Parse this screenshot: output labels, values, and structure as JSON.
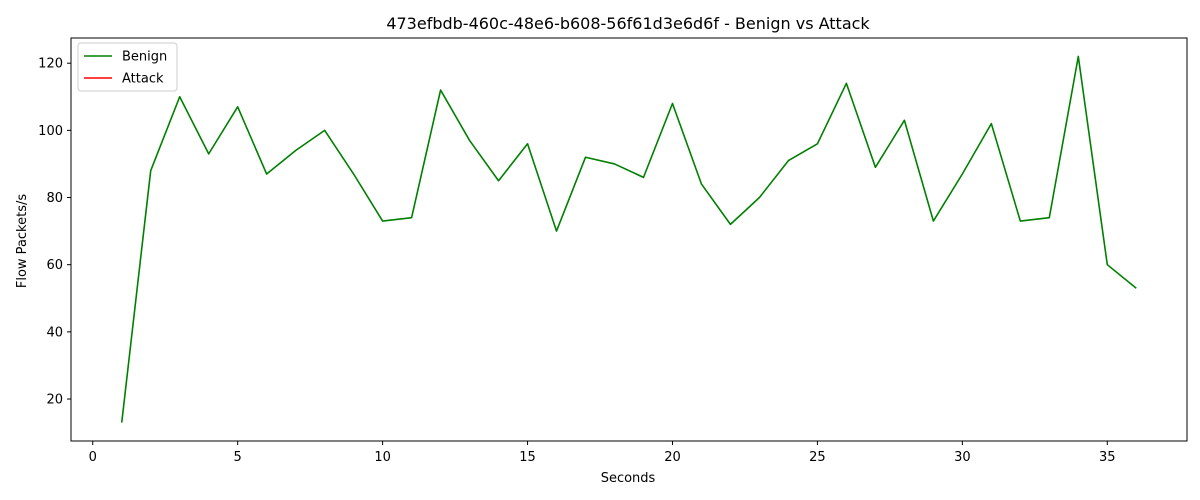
{
  "chart_data": {
    "type": "line",
    "title": "473efbdb-460c-48e6-b608-56f61d3e6d6f - Benign vs Attack",
    "xlabel": "Seconds",
    "ylabel": "Flow Packets/s",
    "xlim": [
      -0.75,
      37.75
    ],
    "ylim": [
      7.5,
      127.5
    ],
    "xticks": [
      0,
      5,
      10,
      15,
      20,
      25,
      30,
      35
    ],
    "yticks": [
      20,
      40,
      60,
      80,
      100,
      120
    ],
    "grid": false,
    "legend_position": "top-left",
    "series": [
      {
        "name": "Benign",
        "color": "#008000",
        "x": [
          1,
          2,
          3,
          4,
          5,
          6,
          7,
          8,
          9,
          10,
          11,
          12,
          13,
          14,
          15,
          16,
          17,
          18,
          19,
          20,
          21,
          22,
          23,
          24,
          25,
          26,
          27,
          28,
          29,
          30,
          31,
          32,
          33,
          34,
          35,
          36
        ],
        "y": [
          13,
          88,
          110,
          93,
          107,
          87,
          94,
          100,
          87,
          73,
          74,
          112,
          97,
          85,
          96,
          70,
          92,
          90,
          86,
          108,
          84,
          72,
          80,
          91,
          96,
          114,
          89,
          103,
          73,
          87,
          102,
          73,
          74,
          122,
          60,
          53
        ]
      },
      {
        "name": "Attack",
        "color": "#ff0000",
        "x": [],
        "y": []
      }
    ]
  }
}
